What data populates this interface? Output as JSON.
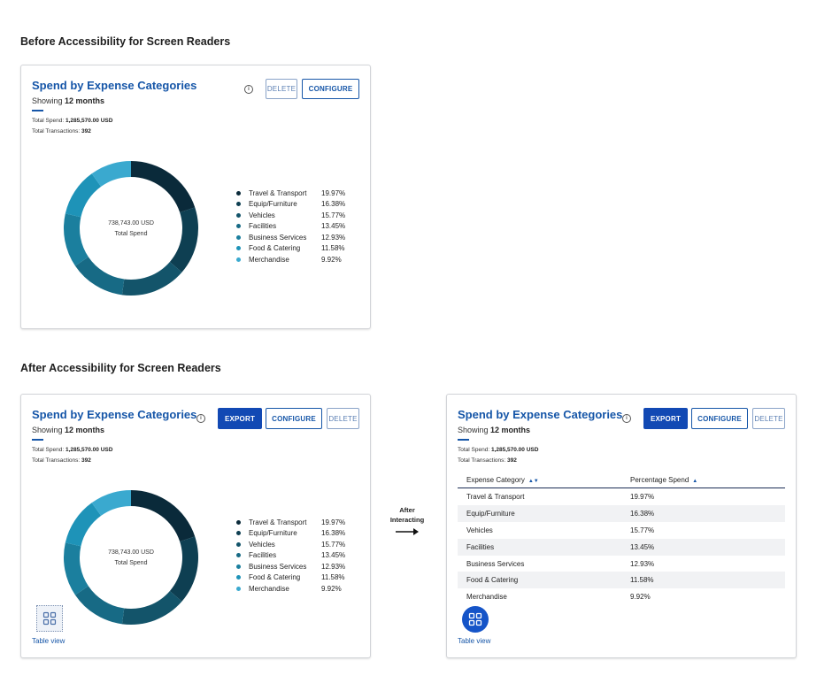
{
  "headings": {
    "before": "Before Accessibility for Screen Readers",
    "after": "After Accessibility for Screen Readers"
  },
  "arrow": {
    "line1": "After",
    "line2": "Interacting"
  },
  "card": {
    "title": "Spend by Expense Categories",
    "showing_prefix": "Showing",
    "showing_value": "12 months",
    "total_spend_label": "Total Spend:",
    "total_spend_value": "1,285,570.00 USD",
    "total_transactions_label": "Total Transactions:",
    "total_transactions_value": "392",
    "center_amount": "738,743.00 USD",
    "center_label": "Total Spend",
    "info_icon": "i"
  },
  "buttons": {
    "delete": "DELETE",
    "configure": "CONFIGURE",
    "export": "EXPORT"
  },
  "table_view": {
    "label": "Table view",
    "icon": "grid-icon"
  },
  "table": {
    "headers": [
      "Expense Category",
      "Percentage Spend"
    ],
    "sort_both_glyph": "▲▼",
    "sort_up_glyph": "▲"
  },
  "chart_data": {
    "type": "pie",
    "donut": true,
    "categories": [
      "Travel & Transport",
      "Equip/Furniture",
      "Vehicles",
      "Facilities",
      "Business Services",
      "Food & Catering",
      "Merchandise"
    ],
    "values": [
      19.97,
      16.38,
      15.77,
      13.45,
      12.93,
      11.58,
      9.92
    ],
    "labels": [
      "19.97%",
      "16.38%",
      "15.77%",
      "13.45%",
      "12.93%",
      "11.58%",
      "9.92%"
    ],
    "colors": [
      "#0a2a3a",
      "#0e3f52",
      "#13546a",
      "#176a85",
      "#1b7f9e",
      "#1e93b8",
      "#3aa9cf"
    ]
  }
}
